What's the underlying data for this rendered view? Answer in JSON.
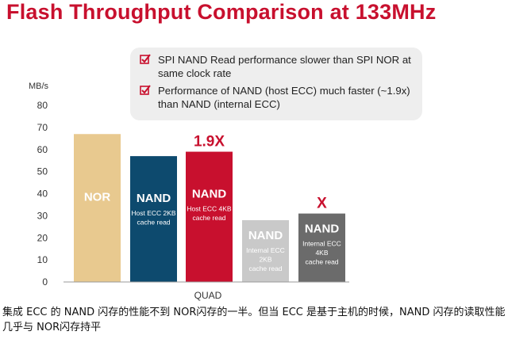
{
  "slide": {
    "title": "Flash Throughput Comparison at 133MHz"
  },
  "callout": {
    "items": [
      {
        "icon": "checkbox-check-icon",
        "text": "SPI NAND Read performance slower than SPI NOR at same clock rate"
      },
      {
        "icon": "checkbox-check-icon",
        "text": "Performance of NAND (host ECC) much faster (~1.9x) than NAND (internal ECC)"
      }
    ]
  },
  "caption": "集成 ECC 的 NAND 闪存的性能不到 NOR闪存的一半。但当 ECC 是基于主机的时候，NAND 闪存的读取性能几乎与 NOR闪存持平",
  "colors": {
    "accent": "#c8102e",
    "nor": "#e8c98f",
    "nand_host_2kb": "#0d4a6e",
    "nand_host_4kb": "#c8102e",
    "nand_internal_2kb": "#c9c9c9",
    "nand_internal_4kb": "#6b6b6b"
  },
  "chart_data": {
    "type": "bar",
    "title": "Flash Throughput Comparison at 133MHz",
    "ylabel": "MB/s",
    "xlabel": "QUAD",
    "ylim": [
      0,
      80
    ],
    "yticks": [
      0,
      10,
      20,
      30,
      40,
      50,
      60,
      70,
      80
    ],
    "grid": false,
    "categories": [
      "NOR",
      "NAND Host ECC 2KB cache read",
      "NAND Host ECC 4KB cache read",
      "NAND Internal ECC 2KB cache read",
      "NAND Internal ECC 4KB cache read"
    ],
    "values": [
      67,
      57,
      59,
      28,
      31
    ],
    "bars": [
      {
        "main": "NOR",
        "sub": [],
        "color": "#e8c98f",
        "text_color": "#ffffff",
        "top_label": ""
      },
      {
        "main": "NAND",
        "sub": [
          "Host ECC 2KB",
          "cache read"
        ],
        "color": "#0d4a6e",
        "text_color": "#ffffff",
        "top_label": ""
      },
      {
        "main": "NAND",
        "sub": [
          "Host ECC 4KB",
          "cache read"
        ],
        "color": "#c8102e",
        "text_color": "#ffffff",
        "top_label": "1.9X"
      },
      {
        "main": "NAND",
        "sub": [
          "Internal ECC",
          "2KB",
          "cache read"
        ],
        "color": "#c9c9c9",
        "text_color": "#ffffff",
        "top_label": ""
      },
      {
        "main": "NAND",
        "sub": [
          "Internal ECC",
          "4KB",
          "cache read"
        ],
        "color": "#6b6b6b",
        "text_color": "#ffffff",
        "top_label": "X"
      }
    ]
  }
}
